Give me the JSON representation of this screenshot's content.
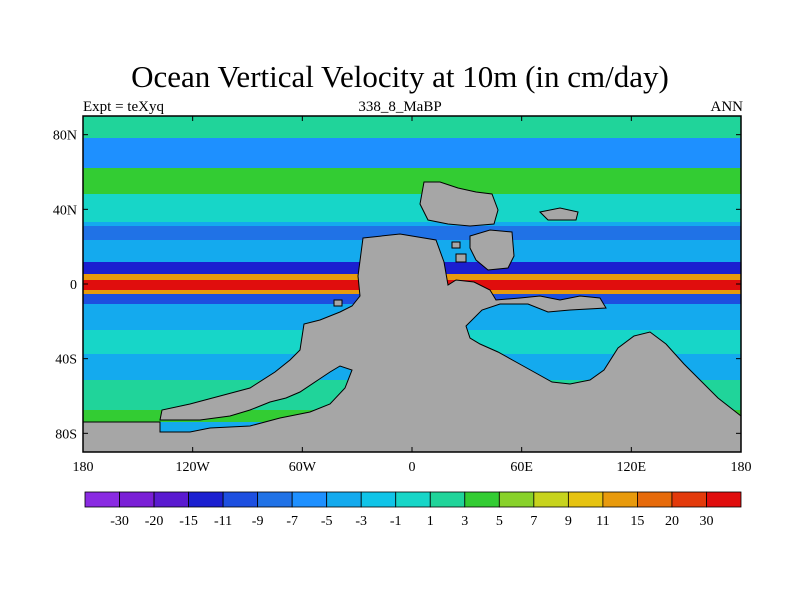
{
  "title": "Ocean Vertical Velocity at 10m (in cm/day)",
  "left_label": "Expt = teXyq",
  "center_label": "338_8_MaBP",
  "right_label": "ANN",
  "map": {
    "lon_range": [
      -180,
      180
    ],
    "lat_range": [
      -90,
      90
    ],
    "land_color": "#a6a6a6",
    "y_ticks": [
      {
        "lat": 80,
        "label": "80N"
      },
      {
        "lat": 40,
        "label": "40N"
      },
      {
        "lat": 0,
        "label": "0"
      },
      {
        "lat": -40,
        "label": "40S"
      },
      {
        "lat": -80,
        "label": "80S"
      }
    ],
    "x_ticks": [
      {
        "lon": -180,
        "label": "180"
      },
      {
        "lon": -120,
        "label": "120W"
      },
      {
        "lon": -60,
        "label": "60W"
      },
      {
        "lon": 0,
        "label": "0"
      },
      {
        "lon": 60,
        "label": "60E"
      },
      {
        "lon": 120,
        "label": "120E"
      },
      {
        "lon": 180,
        "label": "180"
      }
    ]
  },
  "colorbar": {
    "labels": [
      "-30",
      "-20",
      "-15",
      "-11",
      "-9",
      "-7",
      "-5",
      "-3",
      "-1",
      "1",
      "3",
      "5",
      "7",
      "9",
      "11",
      "15",
      "20",
      "30"
    ],
    "colors": [
      "#8a2be2",
      "#7a1fd6",
      "#5a1ad0",
      "#1b1fd0",
      "#1d4fe0",
      "#2072e6",
      "#1e90ff",
      "#14aaee",
      "#10c4e8",
      "#17d6c8",
      "#20d49a",
      "#33cc33",
      "#88d12a",
      "#c7d31d",
      "#e6c311",
      "#e89a0c",
      "#e66a0a",
      "#e33a0b",
      "#e00d0d"
    ]
  }
}
